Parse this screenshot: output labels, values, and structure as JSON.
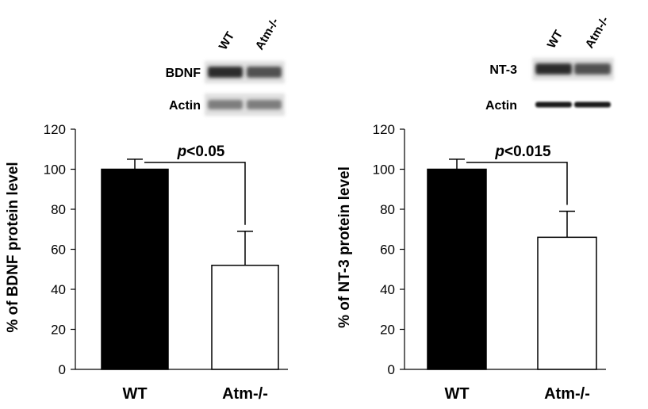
{
  "chart_data": [
    {
      "type": "bar",
      "categories": [
        "WT",
        "Atm-/-"
      ],
      "values": [
        100,
        52
      ],
      "errors": [
        5,
        17
      ],
      "bar_colors": [
        "#000000",
        "#ffffff"
      ],
      "ylabel": "% of BDNF protein level",
      "ylim": [
        0,
        120
      ],
      "yticks": [
        0,
        20,
        40,
        60,
        80,
        100,
        120
      ],
      "significance": {
        "prefix": "p",
        "suffix": "<0.05"
      },
      "blot": {
        "lanes": [
          "WT",
          "Atm-/-"
        ],
        "rows": [
          {
            "label": "BDNF",
            "style": "dark"
          },
          {
            "label": "Actin",
            "style": "faint"
          }
        ]
      }
    },
    {
      "type": "bar",
      "categories": [
        "WT",
        "Atm-/-"
      ],
      "values": [
        100,
        66
      ],
      "errors": [
        5,
        13
      ],
      "bar_colors": [
        "#000000",
        "#ffffff"
      ],
      "ylabel": "% of NT-3 protein level",
      "ylim": [
        0,
        120
      ],
      "yticks": [
        0,
        20,
        40,
        60,
        80,
        100,
        120
      ],
      "significance": {
        "prefix": "p",
        "suffix": "<0.015"
      },
      "blot": {
        "lanes": [
          "WT",
          "Atm-/-"
        ],
        "rows": [
          {
            "label": "NT-3",
            "style": "dark"
          },
          {
            "label": "Actin",
            "style": "sharp"
          }
        ]
      }
    }
  ]
}
